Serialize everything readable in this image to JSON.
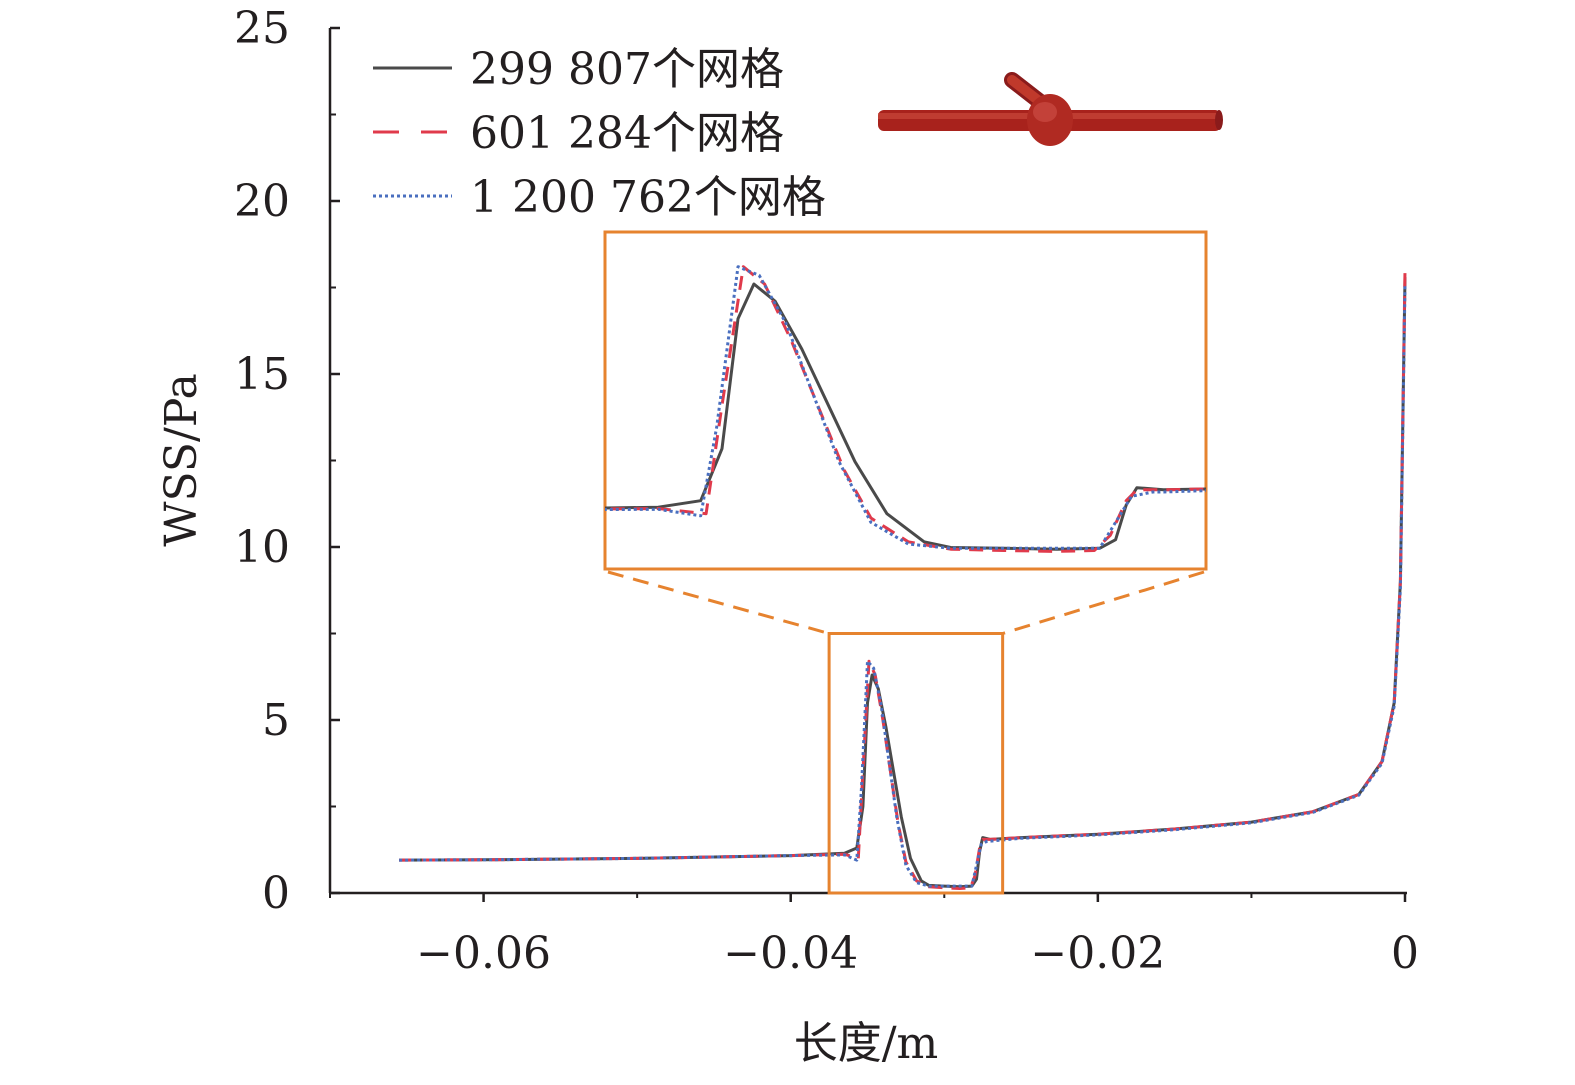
{
  "chart_data": {
    "type": "line",
    "xlabel": "长度/m",
    "ylabel": "WSS/Pa",
    "xlim": [
      -0.07,
      0.0
    ],
    "ylim": [
      0,
      25
    ],
    "x_ticks": [
      -0.06,
      -0.04,
      -0.02,
      0
    ],
    "x_tick_labels": [
      "−0.06",
      "−0.04",
      "−0.02",
      "0"
    ],
    "y_ticks": [
      0,
      5,
      10,
      15,
      20,
      25
    ],
    "y_tick_labels": [
      "0",
      "5",
      "10",
      "15",
      "20",
      "25"
    ],
    "grid": false,
    "legend_position": "top-left",
    "inset": {
      "type": "zoom",
      "xlim": [
        -0.0375,
        -0.0262
      ],
      "ylim": [
        0,
        7.5
      ],
      "box_color": "#e6832f",
      "position": "upper-middle"
    },
    "series": [
      {
        "name": "299 807个网格",
        "style": "solid",
        "color": "#4a4a4a",
        "points": [
          [
            -0.0655,
            0.95
          ],
          [
            -0.06,
            0.96
          ],
          [
            -0.05,
            1.0
          ],
          [
            -0.04,
            1.08
          ],
          [
            -0.0365,
            1.15
          ],
          [
            -0.0357,
            1.3
          ],
          [
            -0.0353,
            2.5
          ],
          [
            -0.035,
            5.5
          ],
          [
            -0.0347,
            6.3
          ],
          [
            -0.0343,
            5.9
          ],
          [
            -0.0338,
            4.8
          ],
          [
            -0.0333,
            3.5
          ],
          [
            -0.0328,
            2.2
          ],
          [
            -0.0322,
            1.0
          ],
          [
            -0.0315,
            0.35
          ],
          [
            -0.031,
            0.22
          ],
          [
            -0.03,
            0.2
          ],
          [
            -0.029,
            0.18
          ],
          [
            -0.0282,
            0.2
          ],
          [
            -0.0279,
            0.4
          ],
          [
            -0.0277,
            1.2
          ],
          [
            -0.0275,
            1.6
          ],
          [
            -0.027,
            1.55
          ],
          [
            -0.025,
            1.6
          ],
          [
            -0.02,
            1.7
          ],
          [
            -0.015,
            1.85
          ],
          [
            -0.01,
            2.05
          ],
          [
            -0.006,
            2.35
          ],
          [
            -0.003,
            2.85
          ],
          [
            -0.0015,
            3.8
          ],
          [
            -0.0007,
            5.5
          ],
          [
            -0.0003,
            9.0
          ],
          [
            0.0,
            17.8
          ]
        ]
      },
      {
        "name": "601 284个网格",
        "style": "dashed",
        "color": "#e03a4b",
        "points": [
          [
            -0.0655,
            0.95
          ],
          [
            -0.06,
            0.96
          ],
          [
            -0.05,
            1.0
          ],
          [
            -0.04,
            1.08
          ],
          [
            -0.0365,
            1.12
          ],
          [
            -0.0356,
            1.0
          ],
          [
            -0.0353,
            3.5
          ],
          [
            -0.0349,
            6.7
          ],
          [
            -0.0345,
            6.3
          ],
          [
            -0.034,
            5.0
          ],
          [
            -0.0335,
            3.5
          ],
          [
            -0.033,
            2.0
          ],
          [
            -0.0325,
            0.9
          ],
          [
            -0.0318,
            0.35
          ],
          [
            -0.031,
            0.18
          ],
          [
            -0.03,
            0.15
          ],
          [
            -0.029,
            0.13
          ],
          [
            -0.0283,
            0.15
          ],
          [
            -0.028,
            0.5
          ],
          [
            -0.0277,
            1.3
          ],
          [
            -0.0275,
            1.55
          ],
          [
            -0.027,
            1.55
          ],
          [
            -0.025,
            1.6
          ],
          [
            -0.02,
            1.7
          ],
          [
            -0.015,
            1.85
          ],
          [
            -0.01,
            2.05
          ],
          [
            -0.006,
            2.35
          ],
          [
            -0.003,
            2.85
          ],
          [
            -0.0015,
            3.8
          ],
          [
            -0.0007,
            5.5
          ],
          [
            -0.0003,
            9.0
          ],
          [
            0.0,
            18.0
          ]
        ]
      },
      {
        "name": "1 200 762个网格",
        "style": "dotted",
        "color": "#4a6fbf",
        "points": [
          [
            -0.0655,
            0.95
          ],
          [
            -0.06,
            0.96
          ],
          [
            -0.05,
            1.0
          ],
          [
            -0.04,
            1.08
          ],
          [
            -0.0365,
            1.1
          ],
          [
            -0.0357,
            0.95
          ],
          [
            -0.0354,
            3.0
          ],
          [
            -0.035,
            6.7
          ],
          [
            -0.0346,
            6.5
          ],
          [
            -0.0341,
            5.4
          ],
          [
            -0.0336,
            3.8
          ],
          [
            -0.0331,
            2.2
          ],
          [
            -0.0325,
            0.8
          ],
          [
            -0.0318,
            0.3
          ],
          [
            -0.031,
            0.2
          ],
          [
            -0.03,
            0.2
          ],
          [
            -0.029,
            0.2
          ],
          [
            -0.0282,
            0.2
          ],
          [
            -0.0279,
            0.8
          ],
          [
            -0.0276,
            1.4
          ],
          [
            -0.0272,
            1.5
          ],
          [
            -0.027,
            1.5
          ],
          [
            -0.025,
            1.58
          ],
          [
            -0.02,
            1.68
          ],
          [
            -0.015,
            1.83
          ],
          [
            -0.01,
            2.03
          ],
          [
            -0.006,
            2.33
          ],
          [
            -0.003,
            2.83
          ],
          [
            -0.0015,
            3.75
          ],
          [
            -0.0007,
            5.4
          ],
          [
            -0.0003,
            8.8
          ],
          [
            0.0,
            17.6
          ]
        ]
      }
    ]
  }
}
